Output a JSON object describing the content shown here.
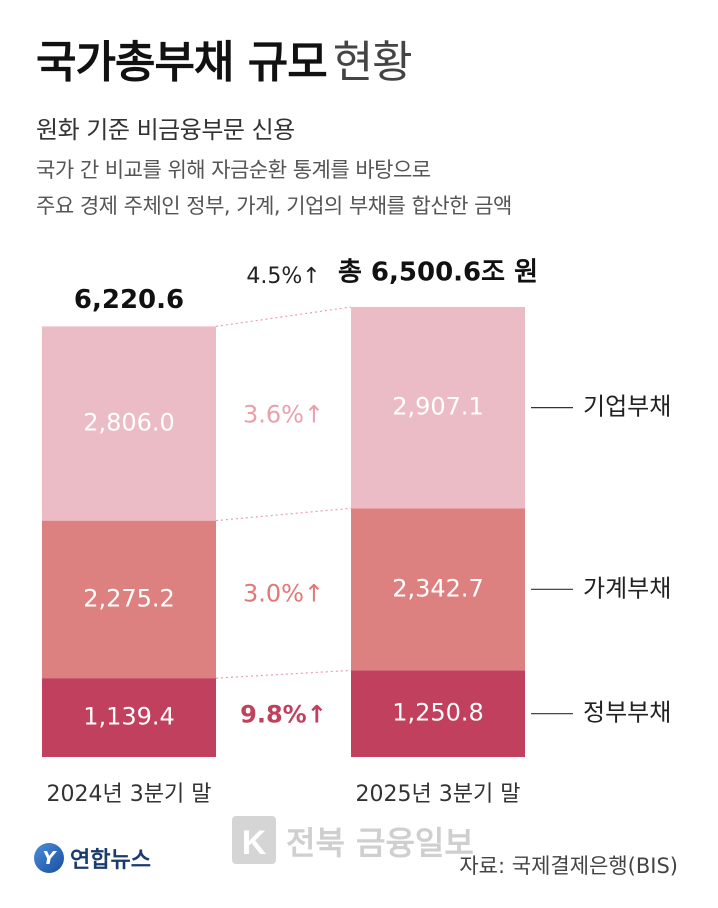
{
  "header": {
    "title_bold": "국가총부채 규모",
    "title_light": "현황",
    "subtitle": "원화 기준 비금융부문 신용",
    "desc_line1": "국가 간 비교를 위해 자금순환 통계를 바탕으로",
    "desc_line2": "주요 경제 주체인 정부, 가계, 기업의 부채를 합산한 금액"
  },
  "chart_data": {
    "type": "bar",
    "stacked": true,
    "categories": [
      "2024년 3분기 말",
      "2025년 3분기 말"
    ],
    "series": [
      {
        "name": "정부부채",
        "values": [
          1139.4,
          1250.8
        ],
        "labels": [
          "1,139.4",
          "1,250.8"
        ],
        "change": "9.8%↑",
        "color": "#c0405e",
        "change_color": "#c0405e"
      },
      {
        "name": "가계부채",
        "values": [
          2275.2,
          2342.7
        ],
        "labels": [
          "2,275.2",
          "2,342.7"
        ],
        "change": "3.0%↑",
        "color": "#dd8080",
        "change_color": "#e07878"
      },
      {
        "name": "기업부채",
        "values": [
          2806.0,
          2907.1
        ],
        "labels": [
          "2,806.0",
          "2,907.1"
        ],
        "change": "3.6%↑",
        "color": "#ebbcc6",
        "change_color": "#eaa0ac"
      }
    ],
    "totals": [
      "6,220.6",
      "총 6,500.6조 원"
    ],
    "total_change": "4.5%↑",
    "total_values": [
      6220.6,
      6500.6
    ]
  },
  "footer": {
    "logo_text": "연합뉴스",
    "source": "자료: 국제결제은행(BIS)"
  },
  "watermark_text": "전북 금융일보",
  "colors": {
    "connector": "#e8a0ae",
    "leader": "#333333"
  }
}
